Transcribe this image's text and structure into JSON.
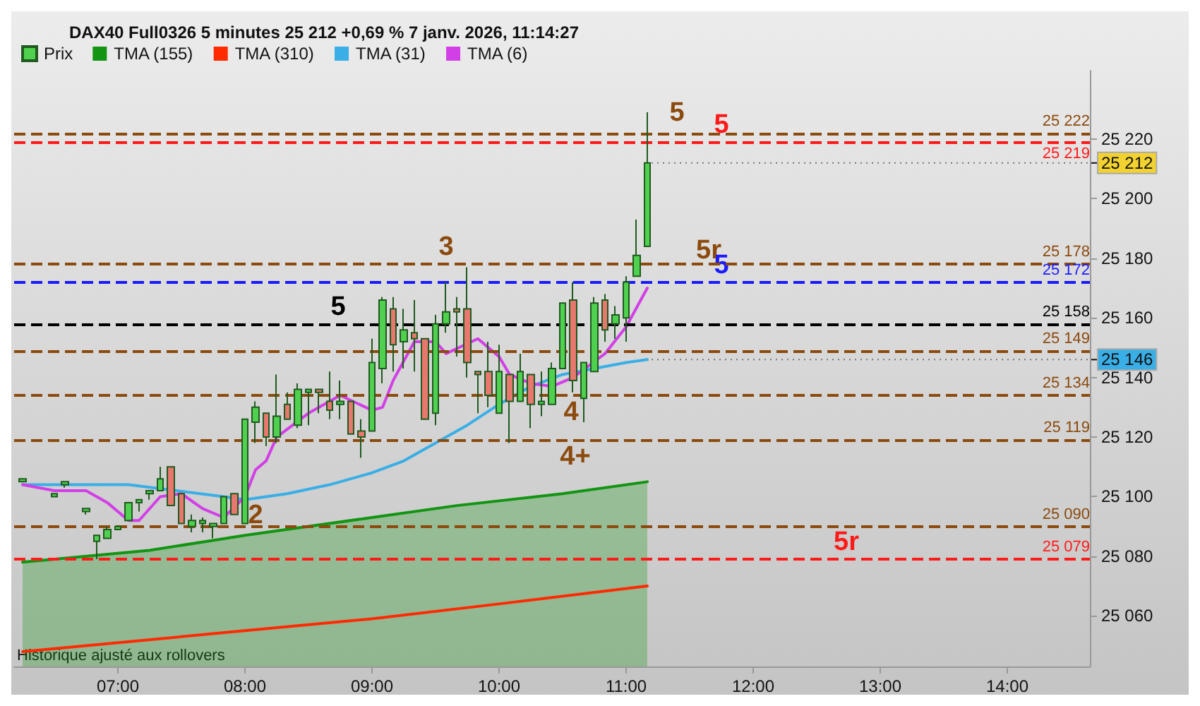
{
  "chart_data": {
    "type": "candlestick",
    "title": "DAX40 Full0326 5 minutes 25 212 +0,69 % 7 janv. 2026, 11:14:27",
    "x": [
      "2026-01-07T06:15",
      "2026-01-07T06:30",
      "2026-01-07T06:35",
      "2026-01-07T06:45",
      "2026-01-07T06:50",
      "2026-01-07T06:55",
      "2026-01-07T07:00",
      "2026-01-07T07:05",
      "2026-01-07T07:10",
      "2026-01-07T07:15",
      "2026-01-07T07:20",
      "2026-01-07T07:25",
      "2026-01-07T07:30",
      "2026-01-07T07:35",
      "2026-01-07T07:40",
      "2026-01-07T07:45",
      "2026-01-07T07:50",
      "2026-01-07T07:55",
      "2026-01-07T08:00",
      "2026-01-07T08:05",
      "2026-01-07T08:10",
      "2026-01-07T08:15",
      "2026-01-07T08:20",
      "2026-01-07T08:25",
      "2026-01-07T08:30",
      "2026-01-07T08:35",
      "2026-01-07T08:40",
      "2026-01-07T08:45",
      "2026-01-07T08:50",
      "2026-01-07T08:55",
      "2026-01-07T09:00",
      "2026-01-07T09:05",
      "2026-01-07T09:10",
      "2026-01-07T09:15",
      "2026-01-07T09:20",
      "2026-01-07T09:25",
      "2026-01-07T09:30",
      "2026-01-07T09:35",
      "2026-01-07T09:40",
      "2026-01-07T09:45",
      "2026-01-07T09:50",
      "2026-01-07T09:55",
      "2026-01-07T10:00",
      "2026-01-07T10:05",
      "2026-01-07T10:10",
      "2026-01-07T10:15",
      "2026-01-07T10:20",
      "2026-01-07T10:25",
      "2026-01-07T10:30",
      "2026-01-07T10:35",
      "2026-01-07T10:40",
      "2026-01-07T10:45",
      "2026-01-07T10:50",
      "2026-01-07T10:55",
      "2026-01-07T11:00",
      "2026-01-07T11:05",
      "2026-01-07T11:10"
    ],
    "series": [
      {
        "name": "Prix",
        "type": "candlestick",
        "ohlc": [
          [
            25105,
            25106,
            25105,
            25106
          ],
          [
            25100,
            25101,
            25100,
            25101
          ],
          [
            25104,
            25105,
            25103,
            25105
          ],
          [
            25095,
            25096,
            25094,
            25096
          ],
          [
            25085,
            25087,
            25079,
            25087
          ],
          [
            25086,
            25090,
            25086,
            25089
          ],
          [
            25089,
            25090,
            25089,
            25090
          ],
          [
            25092,
            25098,
            25092,
            25098
          ],
          [
            25098,
            25099,
            25095,
            25099
          ],
          [
            25101,
            25102,
            25099,
            25102
          ],
          [
            25102,
            25110,
            25102,
            25106
          ],
          [
            25110,
            25110,
            25097,
            25097
          ],
          [
            25101,
            25101,
            25091,
            25091
          ],
          [
            25090,
            25094,
            25088,
            25092
          ],
          [
            25091,
            25093,
            25088,
            25092
          ],
          [
            25090,
            25091,
            25086,
            25091
          ],
          [
            25091,
            25100,
            25091,
            25100
          ],
          [
            25101,
            25101,
            25094,
            25094
          ],
          [
            25091,
            25126,
            25091,
            25126
          ],
          [
            25125,
            25132,
            25118,
            25130
          ],
          [
            25128,
            25128,
            25117,
            25120
          ],
          [
            25120,
            25141,
            25118,
            25127
          ],
          [
            25131,
            25135,
            25126,
            25126
          ],
          [
            25124,
            25138,
            25123,
            25136
          ],
          [
            25135,
            25136,
            25124,
            25136
          ],
          [
            25136,
            25136,
            25128,
            25135
          ],
          [
            25132,
            25142,
            25126,
            25129
          ],
          [
            25131,
            25139,
            25126,
            25132
          ],
          [
            25132,
            25132,
            25121,
            25121
          ],
          [
            25122,
            25126,
            25113,
            25120
          ],
          [
            25122,
            25153,
            25122,
            25145
          ],
          [
            25143,
            25167,
            25138,
            25166
          ],
          [
            25163,
            25167,
            25142,
            25151
          ],
          [
            25152,
            25163,
            25143,
            25156
          ],
          [
            25155,
            25166,
            25142,
            25153
          ],
          [
            25153,
            25153,
            25126,
            25126
          ],
          [
            25128,
            25161,
            25124,
            25158
          ],
          [
            25158,
            25172,
            25155,
            25162
          ],
          [
            25163,
            25167,
            25147,
            25162
          ],
          [
            25163,
            25177,
            25140,
            25145
          ],
          [
            25142,
            25142,
            25128,
            25141
          ],
          [
            25142,
            25152,
            25130,
            25134
          ],
          [
            25128,
            25151,
            25128,
            25142
          ],
          [
            25141,
            25141,
            25118,
            25132
          ],
          [
            25132,
            25148,
            25132,
            25142
          ],
          [
            25141,
            25141,
            25123,
            25131
          ],
          [
            25131,
            25142,
            25127,
            25132
          ],
          [
            25131,
            25145,
            25131,
            25143
          ],
          [
            25143,
            25165,
            25143,
            25165
          ],
          [
            25166,
            25172,
            25135,
            25139
          ],
          [
            25133,
            25145,
            25125,
            25145
          ],
          [
            25142,
            25167,
            25142,
            25165
          ],
          [
            25166,
            25168,
            25152,
            25156
          ],
          [
            25158,
            25164,
            25153,
            25161
          ],
          [
            25160,
            25174,
            25152,
            25172
          ],
          [
            25174,
            25193,
            25174,
            25181
          ],
          [
            25184,
            25229,
            25184,
            25212
          ]
        ],
        "colors": [
          "#4fd04f",
          "#4fd04f",
          "#4fd04f",
          "#4fd04f",
          "#4fd04f",
          "#4fd04f",
          "#4fd04f",
          "#4fd04f",
          "#4fd04f",
          "#4fd04f",
          "#4fd04f",
          "#e8786e",
          "#e8786e",
          "#4fd04f",
          "#4fd04f",
          "#4fd04f",
          "#4fd04f",
          "#e8786e",
          "#4fd04f",
          "#4fd04f",
          "#e8786e",
          "#4fd04f",
          "#e8786e",
          "#4fd04f",
          "#4fd04f",
          "#e8786e",
          "#e8786e",
          "#4fd04f",
          "#e8786e",
          "#e8786e",
          "#4fd04f",
          "#4fd04f",
          "#e8786e",
          "#4fd04f",
          "#e8786e",
          "#e8786e",
          "#4fd04f",
          "#4fd04f",
          "#e8786e",
          "#e8786e",
          "#e8786e",
          "#e8786e",
          "#4fd04f",
          "#e8786e",
          "#4fd04f",
          "#e8786e",
          "#4fd04f",
          "#4fd04f",
          "#4fd04f",
          "#e8786e",
          "#4fd04f",
          "#4fd04f",
          "#e8786e",
          "#4fd04f",
          "#4fd04f",
          "#4fd04f",
          "#4fd04f"
        ]
      },
      {
        "name": "TMA (155)",
        "type": "area",
        "color": "#139413",
        "x": [
          "2026-01-07T06:15",
          "2026-01-07T07:15",
          "2026-01-07T08:00",
          "2026-01-07T09:00",
          "2026-01-07T09:40",
          "2026-01-07T10:30",
          "2026-01-07T11:10"
        ],
        "values": [
          25078,
          25082,
          25087,
          25093,
          25097,
          25101,
          25105
        ]
      },
      {
        "name": "TMA (310)",
        "type": "line",
        "color": "#ff2a00",
        "x": [
          "2026-01-07T06:15",
          "2026-01-07T08:00",
          "2026-01-07T09:00",
          "2026-01-07T10:00",
          "2026-01-07T11:10"
        ],
        "values": [
          25048,
          25055,
          25059,
          25064,
          25070
        ]
      },
      {
        "name": "TMA (31)",
        "type": "line",
        "color": "#3aaee6",
        "x": [
          "2026-01-07T06:15",
          "2026-01-07T07:05",
          "2026-01-07T07:50",
          "2026-01-07T08:00",
          "2026-01-07T08:20",
          "2026-01-07T08:40",
          "2026-01-07T09:00",
          "2026-01-07T09:15",
          "2026-01-07T09:30",
          "2026-01-07T09:45",
          "2026-01-07T10:00",
          "2026-01-07T10:15",
          "2026-01-07T10:30",
          "2026-01-07T10:45",
          "2026-01-07T11:00",
          "2026-01-07T11:10"
        ],
        "values": [
          25104,
          25104,
          25100,
          25099,
          25101,
          25104,
          25108,
          25112,
          25118,
          25124,
          25131,
          25137,
          25141,
          25143,
          25145,
          25146
        ]
      },
      {
        "name": "TMA (6)",
        "type": "line",
        "color": "#d23fe6",
        "x": [
          "2026-01-07T06:15",
          "2026-01-07T06:30",
          "2026-01-07T06:45",
          "2026-01-07T06:55",
          "2026-01-07T07:05",
          "2026-01-07T07:10",
          "2026-01-07T07:20",
          "2026-01-07T07:30",
          "2026-01-07T07:40",
          "2026-01-07T07:50",
          "2026-01-07T08:00",
          "2026-01-07T08:05",
          "2026-01-07T08:10",
          "2026-01-07T08:15",
          "2026-01-07T08:30",
          "2026-01-07T08:45",
          "2026-01-07T09:00",
          "2026-01-07T09:05",
          "2026-01-07T09:10",
          "2026-01-07T09:20",
          "2026-01-07T09:30",
          "2026-01-07T09:35",
          "2026-01-07T09:50",
          "2026-01-07T10:00",
          "2026-01-07T10:05",
          "2026-01-07T10:15",
          "2026-01-07T10:25",
          "2026-01-07T10:35",
          "2026-01-07T10:50",
          "2026-01-07T11:00",
          "2026-01-07T11:10"
        ],
        "values": [
          25104,
          25102,
          25102,
          25098,
          25092,
          25092,
          25100,
          25101,
          25096,
          25093,
          25100,
          25109,
          25112,
          25120,
          25128,
          25134,
          25129,
          25130,
          25139,
          25152,
          25152,
          25148,
          25153,
          25147,
          25141,
          25138,
          25137,
          25140,
          25148,
          25157,
          25170
        ]
      }
    ],
    "xlim": [
      "2026-01-07T06:11",
      "2026-01-07T14:39"
    ],
    "xticks": [
      {
        "value": "2026-01-07T07:00",
        "label": "07:00"
      },
      {
        "value": "2026-01-07T08:00",
        "label": "08:00"
      },
      {
        "value": "2026-01-07T09:00",
        "label": "09:00"
      },
      {
        "value": "2026-01-07T10:00",
        "label": "10:00"
      },
      {
        "value": "2026-01-07T11:00",
        "label": "11:00"
      },
      {
        "value": "2026-01-07T12:00",
        "label": "12:00"
      },
      {
        "value": "2026-01-07T13:00",
        "label": "13:00"
      },
      {
        "value": "2026-01-07T14:00",
        "label": "14:00"
      }
    ],
    "ylim": [
      25043,
      25243
    ],
    "yticks": [
      {
        "value": 25060,
        "label": "25 060"
      },
      {
        "value": 25080,
        "label": "25 080"
      },
      {
        "value": 25100,
        "label": "25 100"
      },
      {
        "value": 25120,
        "label": "25 120"
      },
      {
        "value": 25140,
        "label": "25 140"
      },
      {
        "value": 25160,
        "label": "25 160"
      },
      {
        "value": 25180,
        "label": "25 180"
      },
      {
        "value": 25200,
        "label": "25 200"
      },
      {
        "value": 25220,
        "label": "25 220"
      }
    ],
    "ref_lines": [
      {
        "axis": "y",
        "value": 25222,
        "label": "25 222",
        "color": "#8b4a0e",
        "line_style": "dashed"
      },
      {
        "axis": "y",
        "value": 25219,
        "label": "25 219",
        "color": "#ff1a1a",
        "line_style": "dashed"
      },
      {
        "axis": "y",
        "value": 25178,
        "label": "25 178",
        "color": "#8b4a0e",
        "line_style": "dashed"
      },
      {
        "axis": "y",
        "value": 25172,
        "label": "25 172",
        "color": "#1a1aff",
        "line_style": "dashed"
      },
      {
        "axis": "y",
        "value": 25158,
        "label": "25 158",
        "color": "#000000",
        "line_style": "dashed"
      },
      {
        "axis": "y",
        "value": 25149,
        "label": "25 149",
        "color": "#8b4a0e",
        "line_style": "dashed"
      },
      {
        "axis": "y",
        "value": 25134,
        "label": "25 134",
        "color": "#8b4a0e",
        "line_style": "dashed"
      },
      {
        "axis": "y",
        "value": 25119,
        "label": "25 119",
        "color": "#8b4a0e",
        "line_style": "dashed"
      },
      {
        "axis": "y",
        "value": 25090,
        "label": "25 090",
        "color": "#8b4a0e",
        "line_style": "dashed"
      },
      {
        "axis": "y",
        "value": 25079,
        "label": "25 079",
        "color": "#ff1a1a",
        "line_style": "dashed"
      }
    ],
    "annotations": [
      {
        "text": "5",
        "x": "2026-01-07T11:24",
        "y": 25223
      },
      {
        "text": "5",
        "x": "2026-01-07T11:45",
        "y": 25219
      },
      {
        "text": "3",
        "x": "2026-01-07T09:35",
        "y": 25178
      },
      {
        "text": "5r",
        "x": "2026-01-07T11:39",
        "y": 25177
      },
      {
        "text": "5",
        "x": "2026-01-07T11:45",
        "y": 25172
      },
      {
        "text": "5",
        "x": "2026-01-07T08:44",
        "y": 25158
      },
      {
        "text": "2",
        "x": "2026-01-07T08:05",
        "y": 25088
      },
      {
        "text": "4",
        "x": "2026-01-07T10:34",
        "y": 25134
      },
      {
        "text": "4+",
        "x": "2026-01-07T10:36",
        "y": 25119
      },
      {
        "text": "5r",
        "x": "2026-01-07T12:44",
        "y": 25079
      },
      {
        "text": "25 212",
        "x": "2026-01-07T11:10",
        "y": 25212
      },
      {
        "text": "25 146",
        "x": "2026-01-07T11:10",
        "y": 25146
      },
      "Historique ajusté aux rollovers"
    ],
    "legend": "top left",
    "grid": false,
    "marker": "none",
    "line_style": "solid"
  }
}
